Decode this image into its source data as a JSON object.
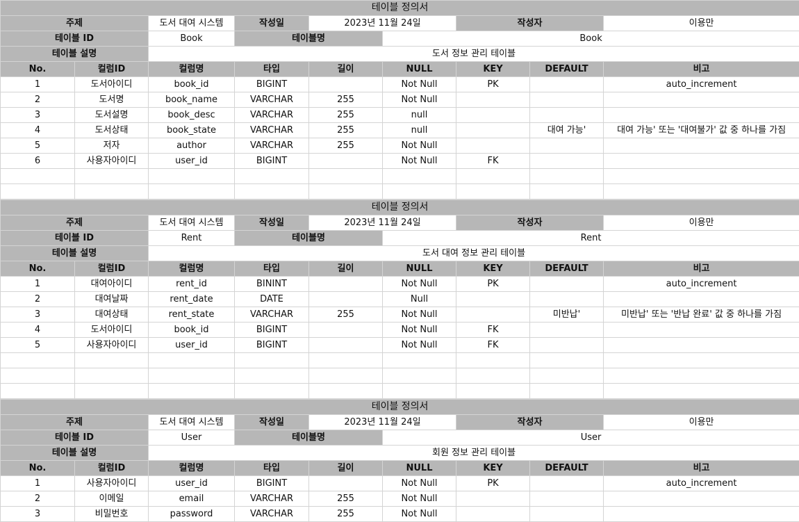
{
  "labels": {
    "doc_title": "테이블 정의서",
    "subject": "주제",
    "created_date": "작성일",
    "author": "작성자",
    "table_id": "테이블 ID",
    "table_name": "테이블명",
    "table_desc": "테이블 설명",
    "columns": [
      "No.",
      "컬럼ID",
      "컬럼명",
      "타입",
      "길이",
      "NULL",
      "KEY",
      "DEFAULT",
      "비고"
    ]
  },
  "tables": [
    {
      "subject": "도서 대여 시스템",
      "date": "2023년 11월 24일",
      "author": "이용만",
      "id": "Book",
      "name": "Book",
      "desc": "도서 정보 관리 테이블",
      "rows": [
        [
          "1",
          "도서아이디",
          "book_id",
          "BIGINT",
          "",
          "Not Null",
          "PK",
          "",
          "auto_increment"
        ],
        [
          "2",
          "도서명",
          "book_name",
          "VARCHAR",
          "255",
          "Not Null",
          "",
          "",
          ""
        ],
        [
          "3",
          "도서설명",
          "book_desc",
          "VARCHAR",
          "255",
          "null",
          "",
          "",
          ""
        ],
        [
          "4",
          "도서상태",
          "book_state",
          "VARCHAR",
          "255",
          "null",
          "",
          "대여 가능'",
          "대여 가능' 또는 '대여불가' 값 중 하나를 가짐"
        ],
        [
          "5",
          "저자",
          "author",
          "VARCHAR",
          "255",
          "Not Null",
          "",
          "",
          ""
        ],
        [
          "6",
          "사용자아이디",
          "user_id",
          "BIGINT",
          "",
          "Not Null",
          "FK",
          "",
          ""
        ]
      ]
    },
    {
      "subject": "도서 대여 시스템",
      "date": "2023년 11월 24일",
      "author": "이용만",
      "id": "Rent",
      "name": "Rent",
      "desc": "도서 대여 정보 관리 테이블",
      "rows": [
        [
          "1",
          "대여아이디",
          "rent_id",
          "BININT",
          "",
          "Not Null",
          "PK",
          "",
          "auto_increment"
        ],
        [
          "2",
          "대여날짜",
          "rent_date",
          "DATE",
          "",
          "Null",
          "",
          "",
          ""
        ],
        [
          "3",
          "대여상태",
          "rent_state",
          "VARCHAR",
          "255",
          "Not Null",
          "",
          "미반납'",
          "미반납' 또는 '반납 완료' 값 중 하나를 가짐"
        ],
        [
          "4",
          "도서아이디",
          "book_id",
          "BIGINT",
          "",
          "Not Null",
          "FK",
          "",
          ""
        ],
        [
          "5",
          "사용자아이디",
          "user_id",
          "BIGINT",
          "",
          "Not Null",
          "FK",
          "",
          ""
        ]
      ]
    },
    {
      "subject": "도서 대여 시스템",
      "date": "2023년 11월 24일",
      "author": "이용만",
      "id": "User",
      "name": "User",
      "desc": "회원 정보 관리 테이블",
      "rows": [
        [
          "1",
          "사용자아이디",
          "user_id",
          "BIGINT",
          "",
          "Not Null",
          "PK",
          "",
          "auto_increment"
        ],
        [
          "2",
          "이메일",
          "email",
          "VARCHAR",
          "255",
          "Not Null",
          "",
          "",
          ""
        ],
        [
          "3",
          "비밀번호",
          "password",
          "VARCHAR",
          "255",
          "Not Null",
          "",
          "",
          ""
        ]
      ]
    }
  ]
}
